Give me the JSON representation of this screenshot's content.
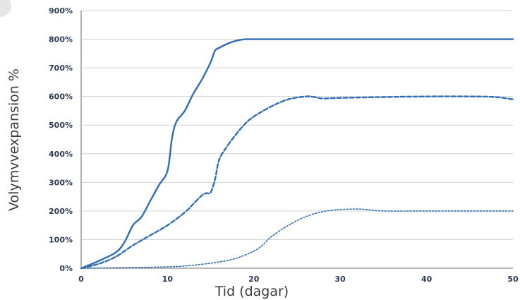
{
  "chart_data": {
    "type": "line",
    "title": "",
    "xlabel": "Tid (dagar)",
    "ylabel": "Volymvvexpansion %",
    "xlim": [
      0,
      50
    ],
    "ylim": [
      0,
      900
    ],
    "x_ticks": [
      "0",
      "10",
      "20",
      "30",
      "40",
      "50"
    ],
    "y_ticks": [
      "0%",
      "100%",
      "200%",
      "300%",
      "400%",
      "500%",
      "600%",
      "700%",
      "800%",
      "900%"
    ],
    "grid": true,
    "legend": "none",
    "colors": {
      "series": "#2f6db5",
      "axis": "#8a8a8a",
      "grid": "#d3d3d3",
      "text": "#2b3a55"
    },
    "series": [
      {
        "line_style": "solid",
        "x": [
          0,
          2,
          4,
          5,
          6,
          7,
          8,
          9,
          10,
          10.5,
          11,
          12,
          13,
          14,
          15,
          15.5,
          16,
          17,
          18,
          19,
          20,
          25,
          30,
          35,
          40,
          45,
          50
        ],
        "values": [
          0,
          25,
          55,
          90,
          150,
          180,
          235,
          290,
          340,
          450,
          510,
          550,
          610,
          660,
          720,
          760,
          770,
          785,
          795,
          800,
          800,
          800,
          800,
          800,
          800,
          800,
          800
        ]
      },
      {
        "line_style": "dashed",
        "x": [
          0,
          2,
          4,
          6,
          8,
          10,
          12,
          13,
          14,
          14.5,
          15,
          15.5,
          16,
          17,
          18,
          19,
          20,
          22,
          24,
          26,
          27,
          28,
          30,
          35,
          40,
          45,
          48,
          50
        ],
        "values": [
          0,
          15,
          40,
          80,
          115,
          150,
          195,
          225,
          255,
          262,
          265,
          310,
          380,
          430,
          470,
          505,
          530,
          565,
          590,
          600,
          598,
          593,
          595,
          598,
          600,
          600,
          598,
          590
        ]
      },
      {
        "line_style": "dotted",
        "x": [
          0,
          5,
          10,
          12,
          14,
          16,
          18,
          20,
          21,
          22,
          24,
          26,
          28,
          30,
          32,
          33,
          35,
          40,
          45,
          50
        ],
        "values": [
          0,
          2,
          5,
          8,
          14,
          22,
          35,
          60,
          80,
          110,
          150,
          180,
          198,
          205,
          207,
          205,
          200,
          200,
          200,
          200
        ]
      }
    ]
  }
}
